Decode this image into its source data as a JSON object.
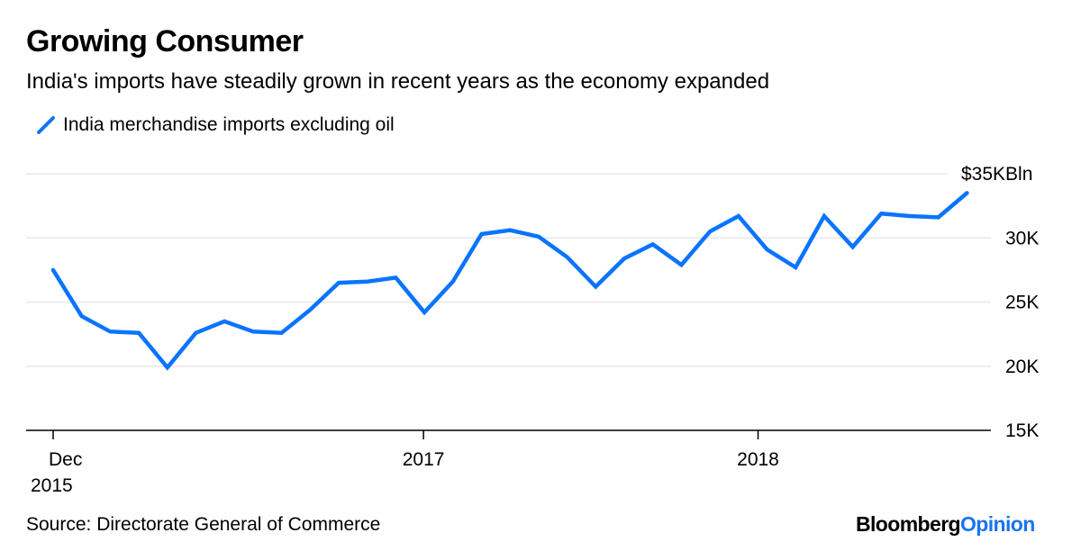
{
  "header": {
    "title": "Growing Consumer",
    "subtitle": "India's imports have steadily grown in recent years as the economy expanded"
  },
  "footer": {
    "source": "Source: Directorate General of Commerce",
    "brand_primary": "Bloomberg",
    "brand_secondary": "Opinion"
  },
  "colors": {
    "series": "#0a74ff",
    "grid": "#ececec",
    "axis": "#000000",
    "brand_accent": "#1a73f0"
  },
  "chart_data": {
    "type": "line",
    "title": "Growing Consumer",
    "subtitle": "India's imports have steadily grown in recent years as the economy expanded",
    "xlabel": "",
    "ylabel": "",
    "y_unit_label": "$35KBln",
    "ylim": [
      15,
      35
    ],
    "yticks": [
      {
        "value": 35,
        "label": "$35KBln"
      },
      {
        "value": 30,
        "label": "30K"
      },
      {
        "value": 25,
        "label": "25K"
      },
      {
        "value": 20,
        "label": "20K"
      },
      {
        "value": 15,
        "label": "15K"
      }
    ],
    "xticks": [
      {
        "index": 0,
        "label": "Dec",
        "label2": "2015"
      },
      {
        "index": 13,
        "label": "2017",
        "label2": ""
      },
      {
        "index": 25,
        "label": "2018",
        "label2": ""
      }
    ],
    "grid": true,
    "legend_position": "top-left",
    "x": [
      "2015-12",
      "2016-01",
      "2016-02",
      "2016-03",
      "2016-04",
      "2016-05",
      "2016-06",
      "2016-07",
      "2016-08",
      "2016-09",
      "2016-10",
      "2016-11",
      "2016-12",
      "2017-01",
      "2017-02",
      "2017-03",
      "2017-04",
      "2017-05",
      "2017-06",
      "2017-07",
      "2017-08",
      "2017-09",
      "2017-10",
      "2017-11",
      "2017-12",
      "2018-01",
      "2018-02",
      "2018-03",
      "2018-04",
      "2018-05",
      "2018-06",
      "2018-07",
      "2018-08"
    ],
    "series": [
      {
        "name": "India merchandise imports excluding oil",
        "values": [
          27.5,
          23.9,
          22.7,
          22.6,
          19.9,
          22.6,
          23.5,
          22.7,
          22.6,
          24.4,
          26.5,
          26.6,
          26.9,
          24.2,
          26.6,
          30.3,
          30.6,
          30.1,
          28.5,
          26.2,
          28.4,
          29.5,
          27.9,
          30.5,
          31.7,
          29.1,
          27.7,
          31.7,
          29.3,
          31.9,
          31.7,
          31.6,
          33.5
        ]
      }
    ]
  }
}
